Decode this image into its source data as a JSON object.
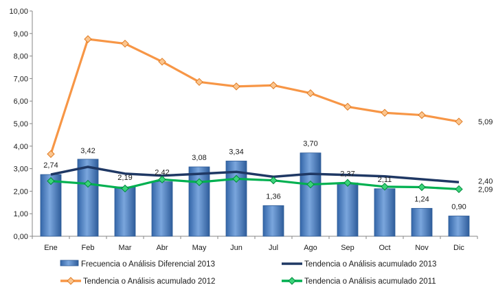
{
  "chart_data": {
    "type": "bar",
    "categories": [
      "Ene",
      "Feb",
      "Mar",
      "Abr",
      "May",
      "Jun",
      "Jul",
      "Ago",
      "Sep",
      "Oct",
      "Nov",
      "Dic"
    ],
    "ylim": [
      0,
      10
    ],
    "yticks": [
      "0,00",
      "1,00",
      "2,00",
      "3,00",
      "4,00",
      "5,00",
      "6,00",
      "7,00",
      "8,00",
      "9,00",
      "10,00"
    ],
    "grid": false,
    "legend_position": "bottom",
    "series": [
      {
        "name": "Frecuencia o Análisis Diferencial 2013",
        "type": "bar",
        "color": "#4F81BD",
        "values": [
          2.74,
          3.42,
          2.19,
          2.42,
          3.08,
          3.34,
          1.36,
          3.7,
          2.37,
          2.11,
          1.24,
          0.9
        ],
        "labels": [
          "2,74",
          "3,42",
          "2,19",
          "2,42",
          "3,08",
          "3,34",
          "1,36",
          "3,70",
          "2,37",
          "2,11",
          "1,24",
          "0,90"
        ]
      },
      {
        "name": "Tendencia o Análisis acumulado 2013",
        "type": "line",
        "color": "#1F3864",
        "values": [
          2.74,
          3.08,
          2.78,
          2.69,
          2.77,
          2.86,
          2.64,
          2.77,
          2.72,
          2.66,
          2.53,
          2.4
        ],
        "end_label": "2,40"
      },
      {
        "name": "Tendencia o Análisis acumulado 2012",
        "type": "line",
        "color": "#F79646",
        "marker": "diamond",
        "values": [
          3.65,
          8.75,
          8.55,
          7.75,
          6.85,
          6.65,
          6.7,
          6.35,
          5.75,
          5.48,
          5.38,
          5.09
        ],
        "end_label": "5,09"
      },
      {
        "name": "Tendencia o Análisis acumulado 2011",
        "type": "line",
        "color": "#00B050",
        "marker": "diamond",
        "values": [
          2.45,
          2.33,
          2.12,
          2.52,
          2.4,
          2.55,
          2.48,
          2.3,
          2.37,
          2.2,
          2.18,
          2.09
        ],
        "end_label": "2,09"
      }
    ]
  }
}
